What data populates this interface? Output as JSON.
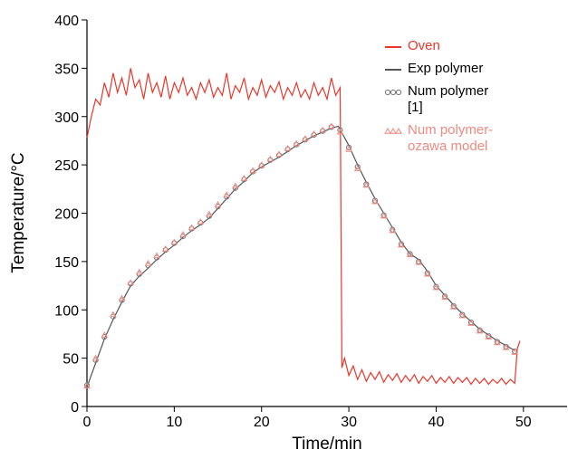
{
  "chart_data": {
    "type": "line",
    "x_label": "Time/min",
    "y_label": "Temperature/°C",
    "xlim": [
      0,
      55
    ],
    "xticks": [
      0,
      10,
      20,
      30,
      40,
      50
    ],
    "ylim": [
      0,
      400
    ],
    "yticks": [
      0,
      50,
      100,
      150,
      200,
      250,
      300,
      350,
      400
    ],
    "series": [
      {
        "name": "Oven",
        "color": "#e8372c",
        "marker": "line",
        "x": [
          0,
          0.5,
          1,
          1.5,
          2,
          2.5,
          3,
          3.5,
          4,
          4.5,
          5,
          5.5,
          6,
          6.5,
          7,
          7.5,
          8,
          8.5,
          9,
          9.5,
          10,
          10.5,
          11,
          11.5,
          12,
          12.5,
          13,
          13.5,
          14,
          14.5,
          15,
          15.5,
          16,
          16.5,
          17,
          17.5,
          18,
          18.5,
          19,
          19.5,
          20,
          20.5,
          21,
          21.5,
          22,
          22.5,
          23,
          23.5,
          24,
          24.5,
          25,
          25.5,
          26,
          26.5,
          27,
          27.5,
          28,
          28.5,
          29,
          29.2,
          29.5,
          30,
          30.5,
          31,
          31.5,
          32,
          32.5,
          33,
          33.5,
          34,
          34.5,
          35,
          35.5,
          36,
          36.5,
          37,
          37.5,
          38,
          38.5,
          39,
          39.5,
          40,
          40.5,
          41,
          41.5,
          42,
          42.5,
          43,
          43.5,
          44,
          44.5,
          45,
          45.5,
          46,
          46.5,
          47,
          47.5,
          48,
          48.5,
          49,
          49.3,
          49.6
        ],
        "values": [
          278,
          300,
          318,
          312,
          335,
          320,
          345,
          325,
          340,
          322,
          350,
          330,
          338,
          318,
          345,
          325,
          335,
          320,
          342,
          318,
          335,
          325,
          340,
          322,
          330,
          318,
          335,
          325,
          338,
          320,
          330,
          322,
          345,
          318,
          332,
          325,
          340,
          318,
          330,
          322,
          338,
          320,
          332,
          325,
          336,
          318,
          330,
          322,
          335,
          320,
          328,
          318,
          335,
          322,
          330,
          318,
          340,
          322,
          330,
          40,
          50,
          32,
          42,
          28,
          38,
          26,
          35,
          28,
          36,
          25,
          33,
          27,
          34,
          25,
          32,
          26,
          33,
          24,
          31,
          26,
          32,
          24,
          30,
          25,
          31,
          24,
          30,
          25,
          30,
          23,
          29,
          24,
          29,
          23,
          28,
          24,
          29,
          23,
          28,
          24,
          60,
          68
        ]
      },
      {
        "name": "Exp polymer",
        "color": "#555555",
        "marker": "line",
        "x": [
          0,
          1,
          2,
          3,
          4,
          5,
          6,
          7,
          8,
          9,
          10,
          11,
          12,
          13,
          14,
          15,
          16,
          17,
          18,
          19,
          20,
          21,
          22,
          23,
          24,
          25,
          26,
          27,
          28,
          28.8,
          30,
          31,
          32,
          33,
          34,
          35,
          36,
          37,
          38,
          39,
          40,
          41,
          42,
          43,
          44,
          45,
          46,
          47,
          48,
          49
        ],
        "values": [
          20,
          45,
          70,
          90,
          108,
          125,
          135,
          143,
          152,
          160,
          167,
          175,
          182,
          188,
          195,
          205,
          215,
          225,
          233,
          242,
          248,
          253,
          258,
          264,
          270,
          275,
          280,
          284,
          288,
          290,
          270,
          250,
          232,
          215,
          200,
          185,
          170,
          158,
          152,
          140,
          125,
          115,
          105,
          96,
          88,
          80,
          74,
          68,
          63,
          58
        ]
      },
      {
        "name": "Num polymer [1]",
        "color": "#777777",
        "marker": "circle",
        "x": [
          0,
          1,
          2,
          3,
          4,
          5,
          6,
          7,
          8,
          9,
          10,
          11,
          12,
          13,
          14,
          15,
          16,
          17,
          18,
          19,
          20,
          21,
          22,
          23,
          24,
          25,
          26,
          27,
          28,
          29,
          30,
          31,
          32,
          33,
          34,
          35,
          36,
          37,
          38,
          39,
          40,
          41,
          42,
          43,
          44,
          45,
          46,
          47,
          48,
          49
        ],
        "values": [
          22,
          48,
          72,
          93,
          110,
          127,
          137,
          146,
          154,
          162,
          169,
          176,
          184,
          190,
          197,
          207,
          217,
          226,
          235,
          243,
          249,
          255,
          260,
          266,
          271,
          276,
          281,
          285,
          289,
          286,
          268,
          248,
          230,
          213,
          198,
          183,
          168,
          158,
          150,
          138,
          124,
          114,
          104,
          95,
          87,
          79,
          73,
          67,
          62,
          57
        ]
      },
      {
        "name": "Num polymer-ozawa model",
        "color": "#f08a80",
        "marker": "triangle",
        "x": [
          0,
          1,
          2,
          3,
          4,
          5,
          6,
          7,
          8,
          9,
          10,
          11,
          12,
          13,
          14,
          15,
          16,
          17,
          18,
          19,
          20,
          21,
          22,
          23,
          24,
          25,
          26,
          27,
          28,
          29,
          30,
          31,
          32,
          33,
          34,
          35,
          36,
          37,
          38,
          39,
          40,
          41,
          42,
          43,
          44,
          45,
          46,
          47,
          48,
          49
        ],
        "values": [
          21,
          50,
          74,
          95,
          112,
          128,
          139,
          148,
          156,
          163,
          170,
          178,
          185,
          191,
          199,
          209,
          219,
          228,
          236,
          244,
          250,
          256,
          261,
          267,
          272,
          277,
          282,
          286,
          290,
          284,
          266,
          246,
          229,
          212,
          197,
          182,
          167,
          157,
          149,
          137,
          123,
          113,
          103,
          94,
          86,
          78,
          72,
          66,
          61,
          56
        ]
      }
    ]
  }
}
